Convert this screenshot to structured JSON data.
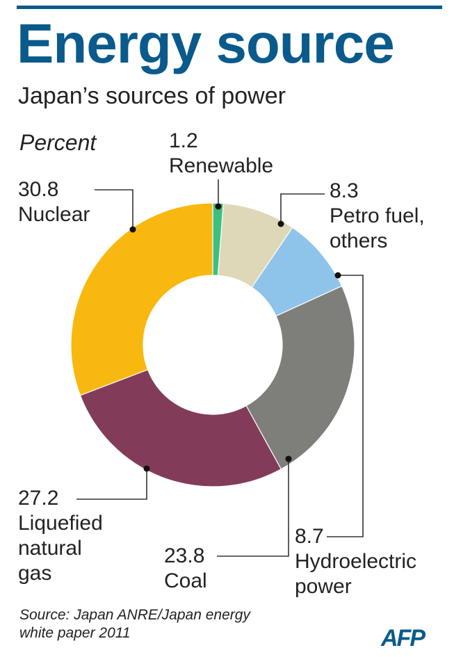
{
  "header": {
    "title": "Energy source",
    "subtitle": "Japan’s sources of power"
  },
  "chart_data": {
    "type": "pie",
    "variant": "donut",
    "unit_label": "Percent",
    "slices": [
      {
        "label": "Renewable",
        "value": 1.2,
        "value_text": "1.2",
        "color": "#3fbf7f"
      },
      {
        "label": "Petro fuel, others",
        "value": 8.3,
        "value_text": "8.3",
        "color": "#ded8b8"
      },
      {
        "label": "Hydroelectric power",
        "value": 8.7,
        "value_text": "8.7",
        "color": "#8fc4ea"
      },
      {
        "label": "Coal",
        "value": 23.8,
        "value_text": "23.8",
        "color": "#7e7e7b"
      },
      {
        "label": "Liquefied natural gas",
        "value": 27.2,
        "value_text": "27.2",
        "color": "#823c5a"
      },
      {
        "label": "Nuclear",
        "value": 30.8,
        "value_text": "30.8",
        "color": "#f9b80f"
      }
    ]
  },
  "labels": {
    "renewable": {
      "value": "1.2",
      "line1": "Renewable"
    },
    "petro": {
      "value": "8.3",
      "line1": "Petro fuel,",
      "line2": "others"
    },
    "hydro": {
      "value": "8.7",
      "line1": "Hydroelectric",
      "line2": "power"
    },
    "coal": {
      "value": "23.8",
      "line1": "Coal"
    },
    "lng": {
      "value": "27.2",
      "line1": "Liquefied",
      "line2": "natural",
      "line3": "gas"
    },
    "nuclear": {
      "value": "30.8",
      "line1": "Nuclear"
    }
  },
  "footer": {
    "source_line1": "Source: Japan ANRE/Japan energy",
    "source_line2": "white paper 2011",
    "logo": "AFP"
  }
}
